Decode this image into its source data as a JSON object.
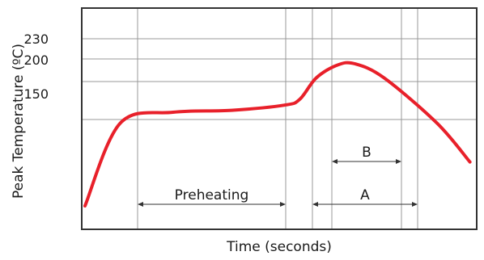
{
  "chart_data": {
    "type": "line",
    "xlabel": "Time (seconds)",
    "ylabel": "Peak Temperature (ºC)",
    "y_ticks": [
      "230",
      "200",
      "150"
    ],
    "line_color": "#e8202a",
    "grid": true,
    "series": [
      {
        "points": [
          [
            0,
            0
          ],
          [
            30,
            128
          ],
          [
            75,
            145
          ],
          [
            125,
            148
          ],
          [
            170,
            156
          ],
          [
            183,
            165
          ],
          [
            197,
            198
          ],
          [
            215,
            218
          ],
          [
            230,
            220
          ],
          [
            255,
            198
          ],
          [
            300,
            128
          ],
          [
            328,
            68
          ]
        ]
      }
    ],
    "regions": [
      {
        "label": "Preheating"
      },
      {
        "label": "B"
      },
      {
        "label": "A"
      }
    ]
  }
}
